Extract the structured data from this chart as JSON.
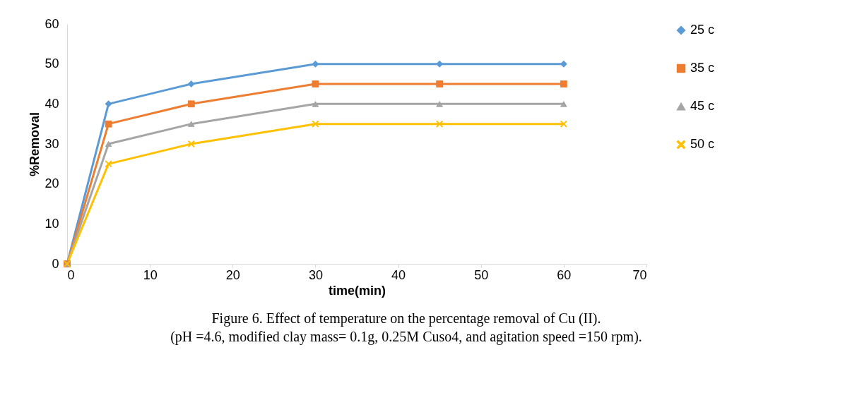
{
  "chart_data": {
    "type": "line",
    "xlabel": "time(min)",
    "ylabel": "%Removal",
    "x": [
      0,
      5,
      15,
      30,
      45,
      60
    ],
    "series": [
      {
        "name": "25 c",
        "color": "#5b9bd5",
        "marker": "diamond",
        "values": [
          0,
          40,
          45,
          50,
          50,
          50
        ]
      },
      {
        "name": "35 c",
        "color": "#ed7d31",
        "marker": "square",
        "values": [
          0,
          35,
          40,
          45,
          45,
          45
        ]
      },
      {
        "name": "45 c",
        "color": "#a5a5a5",
        "marker": "triangle",
        "values": [
          0,
          30,
          35,
          40,
          40,
          40
        ]
      },
      {
        "name": "50 c",
        "color": "#ffc000",
        "marker": "cross",
        "values": [
          0,
          25,
          30,
          35,
          35,
          35
        ]
      }
    ],
    "xlim": [
      0,
      70
    ],
    "xticks": [
      0,
      10,
      20,
      30,
      40,
      50,
      60,
      70
    ],
    "ylim": [
      0,
      60
    ],
    "yticks": [
      0,
      10,
      20,
      30,
      40,
      50,
      60
    ],
    "grid": false,
    "legend": "right",
    "line_style": "solid",
    "annotations": [
      "Figure 6. Effect of temperature on the percentage removal of Cu (II).",
      "(pH =4.6, modified clay mass= 0.1g, 0.25M Cuso4, and agitation speed =150 rpm)."
    ]
  }
}
